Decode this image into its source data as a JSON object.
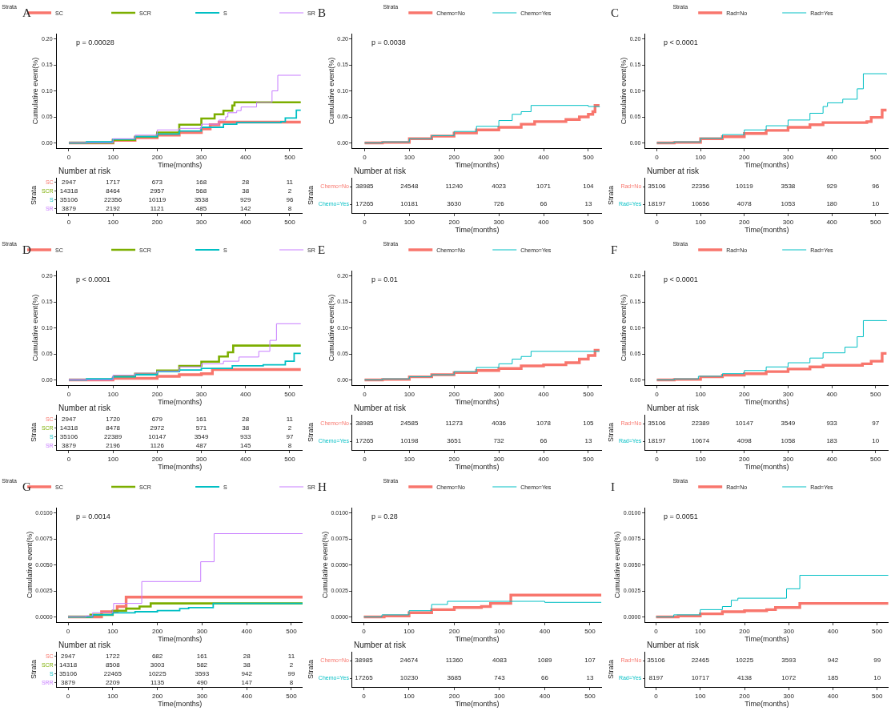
{
  "chart_data": [
    {
      "type": "step",
      "title": "A",
      "legend_title": "Strata",
      "legend": "top",
      "xlabel": "Time(months)",
      "ylabel": "Cumulative event(%)",
      "annotations": [
        "p = 0.00028"
      ],
      "xlim": [
        -27,
        530
      ],
      "xticks": [
        0,
        100,
        200,
        300,
        400,
        500
      ],
      "ylim": [
        -0.01,
        0.21
      ],
      "yticks": [
        {
          "value": 0,
          "label": "0.00"
        },
        {
          "value": 0.05,
          "label": "0.05"
        },
        {
          "value": 0.1,
          "label": "0.10"
        },
        {
          "value": 0.15,
          "label": "0.15"
        },
        {
          "value": 0.2,
          "label": "0.20"
        }
      ],
      "series": [
        {
          "name": "SC",
          "color": "#f8766d",
          "x": [
            0,
            40,
            100,
            150,
            200,
            250,
            300,
            320,
            340,
            525
          ],
          "values": [
            0,
            0,
            0.005,
            0.01,
            0.015,
            0.02,
            0.027,
            0.035,
            0.04,
            0.04
          ]
        },
        {
          "name": "SCR",
          "color": "#7cae00",
          "x": [
            0,
            40,
            100,
            150,
            200,
            250,
            300,
            330,
            350,
            370,
            375,
            525
          ],
          "values": [
            0,
            0,
            0.006,
            0.012,
            0.02,
            0.035,
            0.047,
            0.055,
            0.062,
            0.072,
            0.078,
            0.078
          ]
        },
        {
          "name": "S",
          "color": "#00bfc4",
          "x": [
            0,
            40,
            100,
            150,
            200,
            250,
            300,
            350,
            380,
            480,
            490,
            515,
            525
          ],
          "values": [
            0,
            0.002,
            0.007,
            0.012,
            0.017,
            0.023,
            0.03,
            0.036,
            0.039,
            0.041,
            0.048,
            0.063,
            0.063
          ]
        },
        {
          "name": "SR",
          "color": "#c77cff",
          "x": [
            0,
            40,
            100,
            150,
            200,
            250,
            300,
            340,
            355,
            360,
            380,
            390,
            425,
            460,
            473,
            525
          ],
          "values": [
            0,
            0,
            0.008,
            0.015,
            0.025,
            0.028,
            0.036,
            0.044,
            0.05,
            0.058,
            0.062,
            0.069,
            0.078,
            0.1,
            0.13,
            0.13
          ]
        }
      ]
    },
    {
      "type": "heatmap",
      "data_labels": true,
      "title": "Number at risk",
      "ylabel": "Strata",
      "x": [
        0,
        100,
        200,
        300,
        400,
        500
      ],
      "xlim": [
        -27,
        530
      ],
      "xticks": [
        0,
        100,
        200,
        300,
        400,
        500
      ],
      "y_categories": [
        "SC",
        "SCR",
        "S",
        "SR"
      ],
      "colors": [
        "#f8766d",
        "#7cae00",
        "#00bfc4",
        "#c77cff"
      ],
      "cells": [
        [
          2947,
          1717,
          673,
          168,
          28,
          11
        ],
        [
          14318,
          8464,
          2957,
          568,
          38,
          2
        ],
        [
          35106,
          22356,
          10119,
          3538,
          929,
          96
        ],
        [
          3879,
          2192,
          1121,
          485,
          142,
          8
        ]
      ]
    },
    {
      "type": "step",
      "title": "B",
      "legend_title": "Strata",
      "legend": "top",
      "xlabel": "Time(months)",
      "ylabel": "Cumulative event(%)",
      "annotations": [
        "p = 0.0038"
      ],
      "xlim": [
        -27,
        530
      ],
      "xticks": [
        0,
        100,
        200,
        300,
        400,
        500
      ],
      "ylim": [
        -0.01,
        0.21
      ],
      "yticks": [
        {
          "value": 0,
          "label": "0.00"
        },
        {
          "value": 0.05,
          "label": "0.05"
        },
        {
          "value": 0.1,
          "label": "0.10"
        },
        {
          "value": 0.15,
          "label": "0.15"
        },
        {
          "value": 0.2,
          "label": "0.20"
        }
      ],
      "series": [
        {
          "name": "Chemo=No",
          "color": "#f8766d",
          "x": [
            0,
            40,
            100,
            150,
            200,
            250,
            300,
            350,
            380,
            450,
            480,
            500,
            510,
            515,
            525
          ],
          "values": [
            0,
            0.001,
            0.008,
            0.013,
            0.019,
            0.025,
            0.03,
            0.036,
            0.041,
            0.045,
            0.05,
            0.055,
            0.06,
            0.072,
            0.072
          ]
        },
        {
          "name": "Chemo=Yes",
          "color": "#00bfc4",
          "x": [
            0,
            40,
            100,
            150,
            200,
            250,
            300,
            330,
            350,
            372,
            500,
            525
          ],
          "values": [
            0,
            0.002,
            0.008,
            0.014,
            0.022,
            0.032,
            0.043,
            0.055,
            0.06,
            0.072,
            0.07,
            0.069
          ]
        }
      ]
    },
    {
      "type": "heatmap",
      "title": "Number at risk",
      "ylabel": "Strata",
      "xlabel": "Time(months)",
      "x": [
        0,
        100,
        200,
        300,
        400,
        500
      ],
      "xlim": [
        -27,
        530
      ],
      "xticks": [
        0,
        100,
        200,
        300,
        400,
        500
      ],
      "data_labels": true,
      "y_categories": [
        "Chemo=No",
        "Chemo=Yes"
      ],
      "colors": [
        "#f8766d",
        "#00bfc4"
      ],
      "cells": [
        [
          38985,
          24548,
          11240,
          4023,
          1071,
          104
        ],
        [
          17265,
          10181,
          3630,
          726,
          66,
          13
        ]
      ]
    },
    {
      "type": "step",
      "title": "C",
      "legend_title": "Strata",
      "legend": "top",
      "xlabel": "Time(months)",
      "ylabel": "Cumulative event(%)",
      "annotations": [
        "p < 0.0001"
      ],
      "xlim": [
        -27,
        530
      ],
      "xticks": [
        0,
        100,
        200,
        300,
        400,
        500
      ],
      "ylim": [
        -0.01,
        0.21
      ],
      "yticks": [
        {
          "value": 0,
          "label": "0.00"
        },
        {
          "value": 0.05,
          "label": "0.05"
        },
        {
          "value": 0.1,
          "label": "0.10"
        },
        {
          "value": 0.15,
          "label": "0.15"
        },
        {
          "value": 0.2,
          "label": "0.20"
        }
      ],
      "series": [
        {
          "name": "Rad=No",
          "color": "#f8766d",
          "x": [
            0,
            40,
            100,
            150,
            200,
            250,
            300,
            350,
            380,
            480,
            490,
            515,
            525
          ],
          "values": [
            0,
            0.001,
            0.008,
            0.012,
            0.018,
            0.024,
            0.03,
            0.035,
            0.039,
            0.041,
            0.049,
            0.063,
            0.063
          ]
        },
        {
          "name": "Rad=Yes",
          "color": "#00bfc4",
          "x": [
            0,
            40,
            100,
            150,
            200,
            250,
            300,
            350,
            380,
            390,
            425,
            458,
            472,
            525
          ],
          "values": [
            0,
            0.002,
            0.009,
            0.016,
            0.025,
            0.033,
            0.044,
            0.057,
            0.07,
            0.077,
            0.084,
            0.104,
            0.133,
            0.132
          ]
        }
      ]
    },
    {
      "type": "heatmap",
      "title": "Number at risk",
      "ylabel": "Strata",
      "xlabel": "Time(months)",
      "x": [
        0,
        100,
        200,
        300,
        400,
        500
      ],
      "xlim": [
        -27,
        530
      ],
      "xticks": [
        0,
        100,
        200,
        300,
        400,
        500
      ],
      "data_labels": true,
      "y_categories": [
        "Rad=No",
        "Rad=Yes"
      ],
      "colors": [
        "#f8766d",
        "#00bfc4"
      ],
      "cells": [
        [
          35106,
          22356,
          10119,
          3538,
          929,
          96
        ],
        [
          18197,
          10656,
          4078,
          1053,
          180,
          10
        ]
      ]
    },
    {
      "type": "step",
      "title": "D",
      "legend_title": "Strata",
      "legend": "top",
      "xlabel": "Time(months)",
      "ylabel": "Cumulative event(%)",
      "annotations": [
        "p < 0.0001"
      ],
      "xlim": [
        -27,
        530
      ],
      "xticks": [
        0,
        100,
        200,
        300,
        400,
        500
      ],
      "ylim": [
        -0.01,
        0.21
      ],
      "yticks": [
        {
          "value": 0,
          "label": "0.00"
        },
        {
          "value": 0.05,
          "label": "0.05"
        },
        {
          "value": 0.1,
          "label": "0.10"
        },
        {
          "value": 0.15,
          "label": "0.15"
        },
        {
          "value": 0.2,
          "label": "0.20"
        }
      ],
      "series": [
        {
          "name": "SC",
          "color": "#f8766d",
          "x": [
            0,
            40,
            100,
            200,
            250,
            300,
            325,
            525
          ],
          "values": [
            0,
            0,
            0.003,
            0.007,
            0.01,
            0.012,
            0.02,
            0.02
          ]
        },
        {
          "name": "SCR",
          "color": "#7cae00",
          "x": [
            100,
            150,
            200,
            250,
            300,
            340,
            360,
            372,
            525
          ],
          "values": [
            0.007,
            0.012,
            0.018,
            0.027,
            0.035,
            0.045,
            0.053,
            0.066,
            0.066
          ]
        },
        {
          "name": "S",
          "color": "#00bfc4",
          "x": [
            0,
            40,
            100,
            150,
            200,
            250,
            300,
            370,
            440,
            490,
            510,
            525
          ],
          "values": [
            0,
            0.002,
            0.006,
            0.01,
            0.016,
            0.019,
            0.022,
            0.027,
            0.029,
            0.036,
            0.051,
            0.051
          ]
        },
        {
          "name": "SR",
          "color": "#c77cff",
          "x": [
            0,
            40,
            100,
            150,
            200,
            250,
            300,
            350,
            385,
            430,
            455,
            470,
            525
          ],
          "values": [
            0,
            0,
            0.009,
            0.013,
            0.017,
            0.025,
            0.031,
            0.036,
            0.044,
            0.055,
            0.076,
            0.108,
            0.108
          ]
        }
      ]
    },
    {
      "type": "heatmap",
      "title": "Number at risk",
      "ylabel": "Strata",
      "xlabel": "Time(months)",
      "x": [
        0,
        100,
        200,
        300,
        400,
        500
      ],
      "xlim": [
        -27,
        530
      ],
      "xticks": [
        0,
        100,
        200,
        300,
        400,
        500
      ],
      "y_categories": [
        "SC",
        "SCR",
        "S",
        "SR"
      ],
      "colors": [
        "#f8766d",
        "#7cae00",
        "#00bfc4",
        "#c77cff"
      ],
      "data_labels": true,
      "cells": [
        [
          2947,
          1720,
          679,
          161,
          28,
          11
        ],
        [
          14318,
          8478,
          2972,
          571,
          38,
          2
        ],
        [
          35106,
          22389,
          10147,
          3549,
          933,
          97
        ],
        [
          3879,
          2196,
          1126,
          487,
          145,
          8
        ]
      ]
    },
    {
      "type": "step",
      "title": "E",
      "legend_title": "Strata",
      "legend": "top",
      "xlabel": "Time(months)",
      "ylabel": "Cumulative event(%)",
      "annotations": [
        "p = 0.01"
      ],
      "xlim": [
        -27,
        530
      ],
      "xticks": [
        0,
        100,
        200,
        300,
        400,
        500
      ],
      "ylim": [
        -0.01,
        0.21
      ],
      "yticks": [
        {
          "value": 0,
          "label": "0.00"
        },
        {
          "value": 0.05,
          "label": "0.05"
        },
        {
          "value": 0.1,
          "label": "0.10"
        },
        {
          "value": 0.15,
          "label": "0.15"
        },
        {
          "value": 0.2,
          "label": "0.20"
        }
      ],
      "series": [
        {
          "name": "Chemo=No",
          "color": "#f8766d",
          "x": [
            0,
            40,
            100,
            150,
            200,
            250,
            300,
            350,
            400,
            450,
            480,
            500,
            515,
            525
          ],
          "values": [
            0,
            0.001,
            0.006,
            0.01,
            0.014,
            0.018,
            0.022,
            0.027,
            0.029,
            0.033,
            0.04,
            0.047,
            0.057,
            0.057
          ]
        },
        {
          "name": "Chemo=Yes",
          "color": "#00bfc4",
          "x": [
            0,
            40,
            100,
            150,
            200,
            250,
            300,
            330,
            350,
            372,
            525
          ],
          "values": [
            0,
            0.002,
            0.006,
            0.01,
            0.016,
            0.024,
            0.031,
            0.04,
            0.045,
            0.055,
            0.055
          ]
        }
      ]
    },
    {
      "type": "heatmap",
      "title": "Number at risk",
      "ylabel": "Strata",
      "xlabel": "Time(months)",
      "x": [
        0,
        100,
        200,
        300,
        400,
        500
      ],
      "xlim": [
        -27,
        530
      ],
      "xticks": [
        0,
        100,
        200,
        300,
        400,
        500
      ],
      "y_categories": [
        "Chemo=No",
        "Chemo=Yes"
      ],
      "colors": [
        "#f8766d",
        "#00bfc4"
      ],
      "data_labels": true,
      "cells": [
        [
          38985,
          24585,
          11273,
          4036,
          1078,
          105
        ],
        [
          17265,
          10198,
          3651,
          732,
          66,
          13
        ]
      ]
    },
    {
      "type": "step",
      "title": "F",
      "legend_title": "Strata",
      "legend": "top",
      "xlabel": "Time(months)",
      "ylabel": "Cumulative event(%)",
      "annotations": [
        "p < 0.0001"
      ],
      "xlim": [
        -27,
        530
      ],
      "xticks": [
        0,
        100,
        200,
        300,
        400,
        500
      ],
      "ylim": [
        -0.01,
        0.21
      ],
      "yticks": [
        {
          "value": 0,
          "label": "0.00"
        },
        {
          "value": 0.05,
          "label": "0.05"
        },
        {
          "value": 0.1,
          "label": "0.10"
        },
        {
          "value": 0.15,
          "label": "0.15"
        },
        {
          "value": 0.2,
          "label": "0.20"
        }
      ],
      "series": [
        {
          "name": "Rad=No",
          "color": "#f8766d",
          "x": [
            0,
            40,
            100,
            150,
            200,
            250,
            300,
            350,
            380,
            450,
            470,
            490,
            515,
            525
          ],
          "values": [
            0,
            0.001,
            0.006,
            0.009,
            0.012,
            0.016,
            0.021,
            0.025,
            0.028,
            0.028,
            0.031,
            0.036,
            0.051,
            0.051
          ]
        },
        {
          "name": "Rad=Yes",
          "color": "#00bfc4",
          "x": [
            0,
            40,
            95,
            150,
            200,
            250,
            300,
            350,
            380,
            430,
            458,
            472,
            525
          ],
          "values": [
            0,
            0.002,
            0.007,
            0.012,
            0.018,
            0.025,
            0.033,
            0.042,
            0.052,
            0.063,
            0.083,
            0.114,
            0.113
          ]
        }
      ]
    },
    {
      "type": "heatmap",
      "title": "Number at risk",
      "ylabel": "Strata",
      "xlabel": "Time(months)",
      "x": [
        0,
        100,
        200,
        300,
        400,
        500
      ],
      "xlim": [
        -27,
        530
      ],
      "xticks": [
        0,
        100,
        200,
        300,
        400,
        500
      ],
      "y_categories": [
        "Rad=No",
        "Rad=Yes"
      ],
      "colors": [
        "#f8766d",
        "#00bfc4"
      ],
      "data_labels": true,
      "cells": [
        [
          35106,
          22389,
          10147,
          3549,
          933,
          97
        ],
        [
          18197,
          10674,
          4098,
          1058,
          183,
          10
        ]
      ]
    },
    {
      "type": "step",
      "title": "G",
      "legend_title": "Strata",
      "legend": "top",
      "xlabel": "Time(months)",
      "ylabel": "Cumulative event(%)",
      "annotations": [
        "p = 0.0014"
      ],
      "xlim": [
        -25,
        526
      ],
      "xticks": [
        0,
        100,
        200,
        300,
        400,
        500
      ],
      "ylim": [
        -0.0005,
        0.0105
      ],
      "yticks": [
        {
          "value": 0,
          "label": "0.0000"
        },
        {
          "value": 0.0025,
          "label": "0.0025"
        },
        {
          "value": 0.005,
          "label": "0.0050"
        },
        {
          "value": 0.0075,
          "label": "0.0075"
        },
        {
          "value": 0.01,
          "label": "0.0100"
        }
      ],
      "series": [
        {
          "name": "SC",
          "color": "#f8766d",
          "x": [
            0,
            55,
            75,
            110,
            130,
            525
          ],
          "values": [
            0,
            0,
            0.0005,
            0.001,
            0.0019,
            0.0019
          ]
        },
        {
          "name": "SCR",
          "color": "#7cae00",
          "x": [
            0,
            50,
            100,
            130,
            160,
            185,
            525
          ],
          "values": [
            0,
            0.0002,
            0.0006,
            0.0008,
            0.001,
            0.0013,
            0.0013
          ]
        },
        {
          "name": "S",
          "color": "#00bfc4",
          "x": [
            0,
            55,
            100,
            150,
            200,
            250,
            270,
            325,
            525
          ],
          "values": [
            0,
            0.0002,
            0.0004,
            0.0005,
            0.0006,
            0.0008,
            0.0009,
            0.0013,
            0.0013
          ]
        },
        {
          "name": "SR",
          "color": "#c77cff",
          "x": [
            0,
            40,
            55,
            100,
            102,
            165,
            297,
            327,
            525
          ],
          "values": [
            0,
            0.0001,
            0.0004,
            0.0007,
            0.0013,
            0.0034,
            0.0053,
            0.008,
            0.008
          ]
        }
      ]
    },
    {
      "type": "heatmap",
      "title": "Number at risk",
      "ylabel": "Strata",
      "xlabel": "Time(months)",
      "x": [
        0,
        100,
        200,
        300,
        400,
        500
      ],
      "xlim": [
        -25,
        526
      ],
      "xticks": [
        0,
        100,
        200,
        300,
        400,
        500
      ],
      "y_categories": [
        "SC",
        "SCR",
        "S",
        "SRR"
      ],
      "colors": [
        "#f8766d",
        "#7cae00",
        "#00bfc4",
        "#c77cff"
      ],
      "data_labels": true,
      "cells": [
        [
          2947,
          1722,
          682,
          161,
          28,
          11
        ],
        [
          14318,
          8508,
          3003,
          582,
          38,
          2
        ],
        [
          35106,
          22465,
          10225,
          3593,
          942,
          99
        ],
        [
          3879,
          2209,
          1135,
          490,
          147,
          8
        ]
      ]
    },
    {
      "type": "step",
      "title": "H",
      "legend_title": "Strata",
      "legend": "top",
      "xlabel": "Time(months)",
      "ylabel": "Cumulative event(%)",
      "annotations": [
        "p = 0.28"
      ],
      "xlim": [
        -25,
        526
      ],
      "xticks": [
        0,
        100,
        200,
        300,
        400,
        500
      ],
      "ylim": [
        -0.0005,
        0.0105
      ],
      "yticks": [
        {
          "value": 0,
          "label": "0.0000"
        },
        {
          "value": 0.0025,
          "label": "0.0025"
        },
        {
          "value": 0.005,
          "label": "0.0050"
        },
        {
          "value": 0.0075,
          "label": "0.0075"
        },
        {
          "value": 0.01,
          "label": "0.0100"
        }
      ],
      "series": [
        {
          "name": "Chemo=No",
          "color": "#f8766d",
          "x": [
            0,
            45,
            100,
            150,
            200,
            260,
            280,
            325,
            525
          ],
          "values": [
            0,
            0.0001,
            0.0004,
            0.0007,
            0.0009,
            0.001,
            0.0013,
            0.0021,
            0.0021
          ]
        },
        {
          "name": "Chemo=Yes",
          "color": "#00bfc4",
          "x": [
            0,
            40,
            100,
            150,
            185,
            400,
            525
          ],
          "values": [
            0,
            0.0002,
            0.0006,
            0.0012,
            0.0015,
            0.0014,
            0.0014
          ]
        }
      ]
    },
    {
      "type": "heatmap",
      "title": "Number at risk",
      "ylabel": "Strata",
      "xlabel": "Time(months)",
      "x": [
        0,
        100,
        200,
        300,
        400,
        500
      ],
      "xlim": [
        -25,
        526
      ],
      "xticks": [
        0,
        100,
        200,
        300,
        400,
        500
      ],
      "y_categories": [
        "Chemo=No",
        "Chemo=Yes"
      ],
      "colors": [
        "#f8766d",
        "#00bfc4"
      ],
      "data_labels": true,
      "cells": [
        [
          38985,
          24674,
          11360,
          4083,
          1089,
          107
        ],
        [
          17265,
          10230,
          3685,
          743,
          66,
          13
        ]
      ]
    },
    {
      "type": "step",
      "title": "I",
      "legend_title": "Strata",
      "legend": "top",
      "xlabel": "Time(months)",
      "ylabel": "Cumulative event(%)",
      "annotations": [
        "p = 0.0051"
      ],
      "xlim": [
        -25,
        526
      ],
      "xticks": [
        0,
        100,
        200,
        300,
        400,
        500
      ],
      "ylim": [
        -0.0005,
        0.0105
      ],
      "yticks": [
        {
          "value": 0,
          "label": "0.0000"
        },
        {
          "value": 0.0025,
          "label": "0.0025"
        },
        {
          "value": 0.005,
          "label": "0.0050"
        },
        {
          "value": 0.0075,
          "label": "0.0075"
        },
        {
          "value": 0.01,
          "label": "0.0100"
        }
      ],
      "series": [
        {
          "name": "Rad=No",
          "color": "#f8766d",
          "x": [
            0,
            50,
            100,
            150,
            200,
            250,
            270,
            325,
            525
          ],
          "values": [
            0,
            0.0001,
            0.0003,
            0.0005,
            0.0006,
            0.0007,
            0.0009,
            0.0013,
            0.0013
          ]
        },
        {
          "name": "Rad=Yes",
          "color": "#00bfc4",
          "x": [
            0,
            40,
            100,
            150,
            170,
            185,
            295,
            325,
            525
          ],
          "values": [
            0,
            0.0002,
            0.0007,
            0.001,
            0.0016,
            0.0018,
            0.0027,
            0.004,
            0.004
          ]
        }
      ]
    },
    {
      "type": "heatmap",
      "title": "Number at risk",
      "ylabel": "Strata",
      "xlabel": "Time(months)",
      "x": [
        0,
        100,
        200,
        300,
        400,
        500
      ],
      "xlim": [
        -25,
        526
      ],
      "xticks": [
        0,
        100,
        200,
        300,
        400,
        500
      ],
      "y_categories": [
        "Rad=No",
        "Rad=Yes"
      ],
      "colors": [
        "#f8766d",
        "#00bfc4"
      ],
      "data_labels": true,
      "cells": [
        [
          35106,
          22465,
          10225,
          3593,
          942,
          99
        ],
        [
          8197,
          10717,
          4138,
          1072,
          185,
          10
        ]
      ]
    }
  ]
}
